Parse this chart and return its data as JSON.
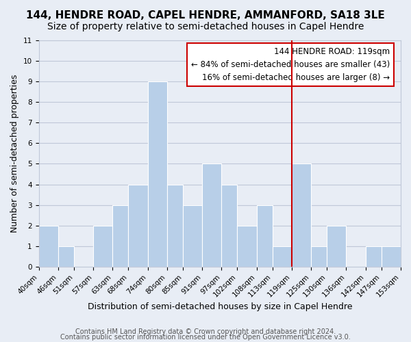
{
  "title": "144, HENDRE ROAD, CAPEL HENDRE, AMMANFORD, SA18 3LE",
  "subtitle": "Size of property relative to semi-detached houses in Capel Hendre",
  "xlabel": "Distribution of semi-detached houses by size in Capel Hendre",
  "ylabel": "Number of semi-detached properties",
  "footer_line1": "Contains HM Land Registry data © Crown copyright and database right 2024.",
  "footer_line2": "Contains public sector information licensed under the Open Government Licence v3.0.",
  "bin_edges": [
    40,
    46,
    51,
    57,
    63,
    68,
    74,
    80,
    85,
    91,
    97,
    102,
    108,
    113,
    119,
    125,
    130,
    136,
    142,
    147,
    153
  ],
  "bar_heights": [
    2,
    1,
    0,
    2,
    3,
    4,
    9,
    4,
    3,
    5,
    4,
    2,
    3,
    1,
    5,
    1,
    2,
    0,
    1,
    1
  ],
  "bar_color": "#b8cfe8",
  "bar_edge_color": "#ffffff",
  "grid_color": "#c0c8d8",
  "vline_x": 119,
  "vline_color": "#cc0000",
  "ylim": [
    0,
    11
  ],
  "yticks": [
    0,
    1,
    2,
    3,
    4,
    5,
    6,
    7,
    8,
    9,
    10,
    11
  ],
  "annotation_title": "144 HENDRE ROAD: 119sqm",
  "annotation_line1": "← 84% of semi-detached houses are smaller (43)",
  "annotation_line2": "16% of semi-detached houses are larger (8) →",
  "annotation_box_color": "#ffffff",
  "annotation_border_color": "#cc0000",
  "bg_color": "#e8edf5",
  "title_fontsize": 11,
  "subtitle_fontsize": 10,
  "tick_label_fontsize": 7.5,
  "axis_label_fontsize": 9,
  "annotation_fontsize": 8.5,
  "footer_fontsize": 7
}
